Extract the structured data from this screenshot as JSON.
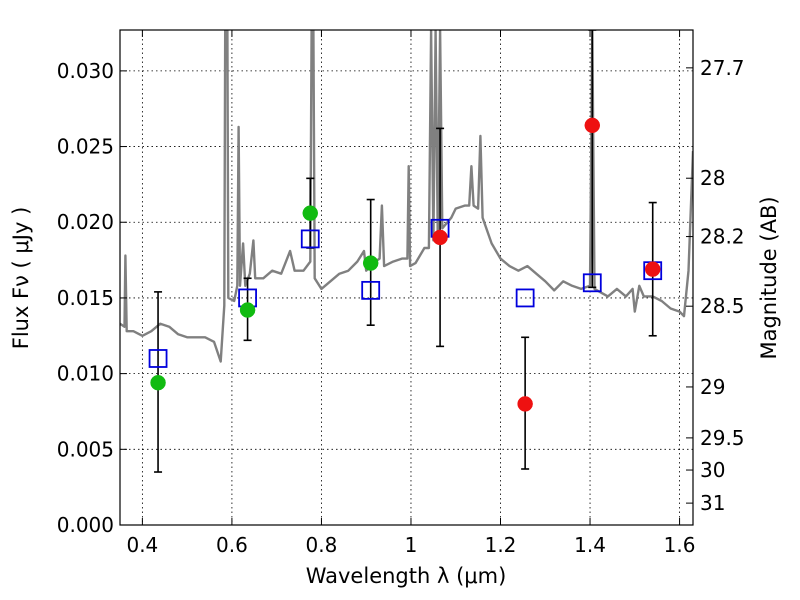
{
  "chart_data": {
    "type": "scatter",
    "xlabel": "Wavelength  λ (μm)",
    "ylabel": "Flux  Fν  ( μJy )",
    "y2label": "Magnitude (AB)",
    "xlim": [
      0.35,
      1.63
    ],
    "ylim": [
      0.0,
      0.0327
    ],
    "xticks": [
      0.4,
      0.6,
      0.8,
      1.0,
      1.2,
      1.4,
      1.6
    ],
    "xtick_labels": [
      "0.4",
      "0.6",
      "0.8",
      "1",
      "1.2",
      "1.4",
      "1.6"
    ],
    "yticks": [
      0.0,
      0.005,
      0.01,
      0.015,
      0.02,
      0.025,
      0.03
    ],
    "ytick_labels": [
      "0.000",
      "0.005",
      "0.010",
      "0.015",
      "0.020",
      "0.025",
      "0.030"
    ],
    "y2ticks": [
      27.7,
      28,
      28.2,
      28.5,
      29,
      29.5,
      30,
      31
    ],
    "y2tick_labels": [
      "27.7",
      "28",
      "28.2",
      "28.5",
      "29",
      "29.5",
      "30",
      "31"
    ],
    "grid": true,
    "colors": {
      "spectrum": "#808080",
      "green": "#11bb11",
      "red": "#ee1111",
      "model_box": "#0000dd",
      "errorbar": "#000000"
    },
    "series": [
      {
        "kind": "model_spectrum",
        "points": [
          [
            0.35,
            0.0133
          ],
          [
            0.36,
            0.0131
          ],
          [
            0.362,
            0.0178
          ],
          [
            0.365,
            0.0128
          ],
          [
            0.38,
            0.0128
          ],
          [
            0.4,
            0.0125
          ],
          [
            0.42,
            0.0128
          ],
          [
            0.44,
            0.0133
          ],
          [
            0.46,
            0.0131
          ],
          [
            0.48,
            0.0126
          ],
          [
            0.5,
            0.0124
          ],
          [
            0.52,
            0.0124
          ],
          [
            0.54,
            0.0124
          ],
          [
            0.56,
            0.0121
          ],
          [
            0.575,
            0.0108
          ],
          [
            0.583,
            0.0145
          ],
          [
            0.585,
            0.0327
          ],
          [
            0.59,
            0.0327
          ],
          [
            0.592,
            0.015
          ],
          [
            0.605,
            0.0148
          ],
          [
            0.612,
            0.0158
          ],
          [
            0.615,
            0.0263
          ],
          [
            0.618,
            0.0158
          ],
          [
            0.625,
            0.0186
          ],
          [
            0.63,
            0.0158
          ],
          [
            0.64,
            0.0166
          ],
          [
            0.648,
            0.0188
          ],
          [
            0.652,
            0.0163
          ],
          [
            0.67,
            0.0163
          ],
          [
            0.69,
            0.0168
          ],
          [
            0.71,
            0.0166
          ],
          [
            0.73,
            0.0181
          ],
          [
            0.74,
            0.0168
          ],
          [
            0.76,
            0.0168
          ],
          [
            0.775,
            0.0174
          ],
          [
            0.778,
            0.0327
          ],
          [
            0.782,
            0.0327
          ],
          [
            0.785,
            0.0163
          ],
          [
            0.8,
            0.0156
          ],
          [
            0.82,
            0.0161
          ],
          [
            0.84,
            0.0166
          ],
          [
            0.86,
            0.0168
          ],
          [
            0.88,
            0.0174
          ],
          [
            0.895,
            0.0181
          ],
          [
            0.9,
            0.0168
          ],
          [
            0.92,
            0.0174
          ],
          [
            0.93,
            0.0176
          ],
          [
            0.935,
            0.0211
          ],
          [
            0.94,
            0.0171
          ],
          [
            0.96,
            0.0174
          ],
          [
            0.98,
            0.0176
          ],
          [
            0.992,
            0.0176
          ],
          [
            0.995,
            0.0237
          ],
          [
            0.998,
            0.0171
          ],
          [
            1.01,
            0.0173
          ],
          [
            1.03,
            0.0183
          ],
          [
            1.04,
            0.0183
          ],
          [
            1.045,
            0.0327
          ],
          [
            1.05,
            0.0188
          ],
          [
            1.055,
            0.0327
          ],
          [
            1.06,
            0.0188
          ],
          [
            1.065,
            0.0327
          ],
          [
            1.07,
            0.0196
          ],
          [
            1.09,
            0.0203
          ],
          [
            1.1,
            0.0209
          ],
          [
            1.12,
            0.0211
          ],
          [
            1.13,
            0.0211
          ],
          [
            1.135,
            0.0237
          ],
          [
            1.14,
            0.0211
          ],
          [
            1.15,
            0.0209
          ],
          [
            1.155,
            0.0257
          ],
          [
            1.16,
            0.0203
          ],
          [
            1.18,
            0.0186
          ],
          [
            1.2,
            0.0176
          ],
          [
            1.22,
            0.0171
          ],
          [
            1.24,
            0.0168
          ],
          [
            1.26,
            0.0171
          ],
          [
            1.28,
            0.0166
          ],
          [
            1.3,
            0.0161
          ],
          [
            1.32,
            0.0155
          ],
          [
            1.34,
            0.0161
          ],
          [
            1.36,
            0.0158
          ],
          [
            1.38,
            0.0156
          ],
          [
            1.4,
            0.0158
          ],
          [
            1.405,
            0.0327
          ],
          [
            1.41,
            0.0156
          ],
          [
            1.44,
            0.0151
          ],
          [
            1.46,
            0.0156
          ],
          [
            1.48,
            0.0151
          ],
          [
            1.495,
            0.0156
          ],
          [
            1.5,
            0.0141
          ],
          [
            1.51,
            0.0158
          ],
          [
            1.52,
            0.0151
          ],
          [
            1.54,
            0.0151
          ],
          [
            1.56,
            0.0148
          ],
          [
            1.58,
            0.0143
          ],
          [
            1.6,
            0.0141
          ],
          [
            1.61,
            0.0138
          ],
          [
            1.62,
            0.0168
          ],
          [
            1.63,
            0.0247
          ]
        ]
      },
      {
        "kind": "model_photometry",
        "x": [
          0.435,
          0.635,
          0.775,
          0.91,
          1.065,
          1.255,
          1.405,
          1.54
        ],
        "y": [
          0.011,
          0.015,
          0.0189,
          0.0155,
          0.0196,
          0.015,
          0.016,
          0.0168
        ]
      },
      {
        "kind": "detections",
        "x": [
          0.435,
          0.635,
          0.775,
          0.91
        ],
        "y": [
          0.0094,
          0.0142,
          0.0206,
          0.0173
        ],
        "yerr_low": [
          0.0035,
          0.0122,
          0.0183,
          0.0132
        ],
        "yerr_high": [
          0.0154,
          0.0163,
          0.0229,
          0.0215
        ]
      },
      {
        "kind": "low_significance",
        "x": [
          1.065,
          1.255,
          1.405,
          1.54
        ],
        "y": [
          0.019,
          0.008,
          0.0264,
          0.0169
        ],
        "yerr_low": [
          0.0118,
          0.0037,
          0.0157,
          0.0125
        ],
        "yerr_high": [
          0.0262,
          0.0124,
          0.0327,
          0.0213
        ]
      }
    ]
  }
}
